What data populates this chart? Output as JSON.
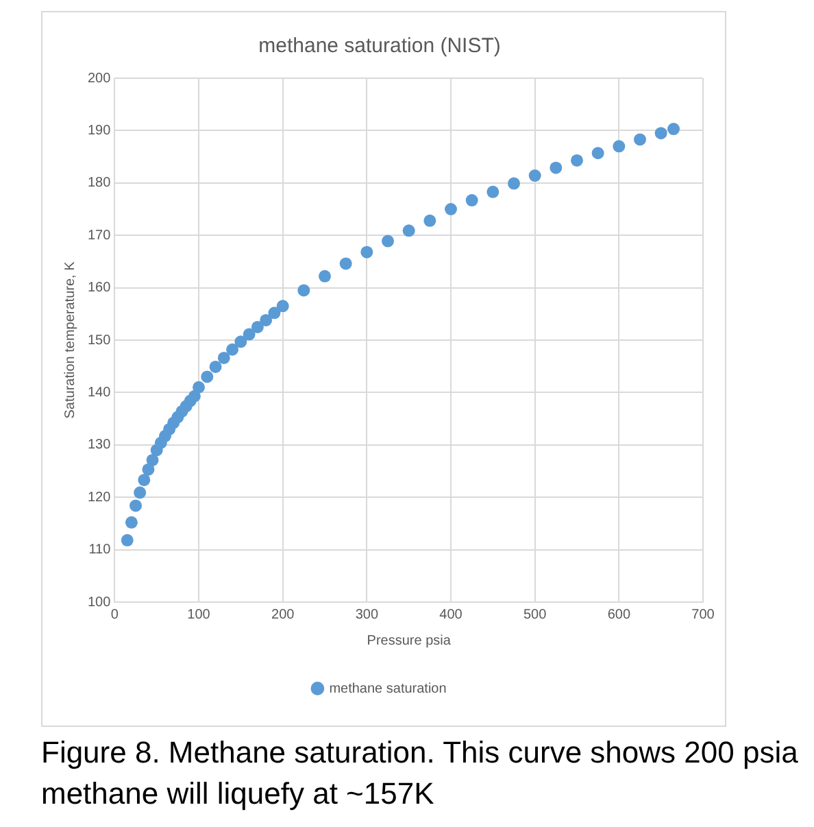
{
  "chart_data": {
    "type": "scatter",
    "title": "methane saturation (NIST)",
    "xlabel": "Pressure psia",
    "ylabel": "Saturation temperature, K",
    "x": [
      15,
      20,
      25,
      30,
      35,
      40,
      45,
      50,
      55,
      60,
      65,
      70,
      75,
      80,
      85,
      90,
      95,
      100,
      110,
      120,
      130,
      140,
      150,
      160,
      170,
      180,
      190,
      200,
      225,
      250,
      275,
      300,
      325,
      350,
      375,
      400,
      425,
      450,
      475,
      500,
      525,
      550,
      575,
      600,
      625,
      650,
      665
    ],
    "series": [
      {
        "name": "methane saturation",
        "color": "#5b9bd5",
        "values": [
          111.8,
          115.2,
          118.4,
          120.9,
          123.3,
          125.3,
          127.1,
          129,
          130.4,
          131.7,
          133,
          134.2,
          135.3,
          136.4,
          137.4,
          138.4,
          139.3,
          141,
          143,
          144.9,
          146.6,
          148.2,
          149.7,
          151.1,
          152.5,
          153.8,
          155.2,
          156.5,
          159.5,
          162.2,
          164.6,
          166.8,
          168.9,
          170.9,
          172.8,
          175,
          176.7,
          178.3,
          179.9,
          181.4,
          182.9,
          184.3,
          185.7,
          187,
          188.3,
          189.5,
          190.3
        ]
      }
    ],
    "xlim": [
      0,
      700
    ],
    "xticks": [
      0,
      100,
      200,
      300,
      400,
      500,
      600,
      700
    ],
    "ylim": [
      100,
      200
    ],
    "yticks": [
      100,
      110,
      120,
      130,
      140,
      150,
      160,
      170,
      180,
      190,
      200
    ],
    "grid": true,
    "legend": "bottom",
    "marker": "circle",
    "annotations": [
      "Figure 8. Methane saturation. This curve shows 200 psia methane will liquefy at ~157K"
    ]
  }
}
